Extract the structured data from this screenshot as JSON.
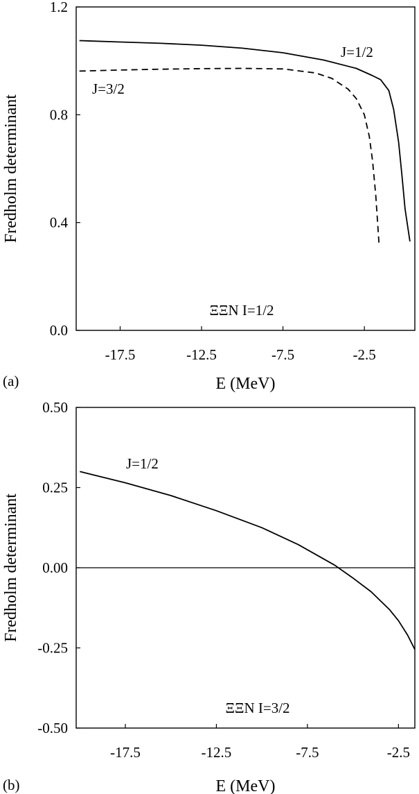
{
  "chart_data": [
    {
      "type": "line",
      "panel_label": "(a)",
      "xlabel": "E (MeV)",
      "ylabel": "Fredholm determinant",
      "xlim": [
        -20.2,
        0.6
      ],
      "ylim": [
        0.0,
        1.2
      ],
      "x_ticks": [
        -17.5,
        -12.5,
        -7.5,
        -2.5
      ],
      "x_tick_labels": [
        "-17.5",
        "-12.5",
        "-7.5",
        "-2.5"
      ],
      "y_ticks": [
        0.0,
        0.4,
        0.8,
        1.2
      ],
      "y_tick_labels": [
        "0.0",
        "0.4",
        "0.8",
        "1.2"
      ],
      "grid": false,
      "annotation": "ΞΞN  I=1/2",
      "series": [
        {
          "name": "J=1/2",
          "style": "solid",
          "x": [
            -20.0,
            -17.5,
            -15.0,
            -12.5,
            -10.0,
            -7.5,
            -5.0,
            -3.0,
            -2.0,
            -1.5,
            -1.0,
            -0.7,
            -0.4,
            -0.2,
            0.0,
            0.3
          ],
          "y": [
            1.075,
            1.07,
            1.065,
            1.058,
            1.047,
            1.03,
            1.003,
            0.972,
            0.945,
            0.93,
            0.89,
            0.82,
            0.7,
            0.58,
            0.45,
            0.33
          ]
        },
        {
          "name": "J=3/2",
          "style": "dashed",
          "x": [
            -20.0,
            -17.5,
            -15.0,
            -12.5,
            -10.0,
            -7.5,
            -5.5,
            -4.5,
            -3.5,
            -3.0,
            -2.5,
            -2.2,
            -2.0,
            -1.8,
            -1.6
          ],
          "y": [
            0.962,
            0.966,
            0.969,
            0.971,
            0.972,
            0.97,
            0.955,
            0.935,
            0.895,
            0.86,
            0.8,
            0.72,
            0.63,
            0.5,
            0.32
          ]
        }
      ]
    },
    {
      "type": "line",
      "panel_label": "(b)",
      "xlabel": "E (MeV)",
      "ylabel": "Fredholm determinant",
      "xlim": [
        -20.2,
        -1.6
      ],
      "ylim": [
        -0.5,
        0.5
      ],
      "x_ticks": [
        -17.5,
        -12.5,
        -7.5,
        -2.5
      ],
      "x_tick_labels": [
        "-17.5",
        "-12.5",
        "-7.5",
        "-2.5"
      ],
      "y_ticks": [
        -0.5,
        -0.25,
        0.0,
        0.25,
        0.5
      ],
      "y_tick_labels": [
        "-0.50",
        "-0.25",
        "0.00",
        "0.25",
        "0.50"
      ],
      "zero_line": true,
      "grid": false,
      "annotation": "ΞΞN  I=3/2",
      "series": [
        {
          "name": "J=1/2",
          "style": "solid",
          "x": [
            -20.0,
            -17.5,
            -15.0,
            -12.5,
            -10.0,
            -8.0,
            -6.0,
            -5.0,
            -4.0,
            -3.0,
            -2.5,
            -2.0,
            -1.6
          ],
          "y": [
            0.3,
            0.265,
            0.225,
            0.178,
            0.125,
            0.072,
            0.008,
            -0.032,
            -0.075,
            -0.13,
            -0.165,
            -0.21,
            -0.255
          ]
        }
      ]
    }
  ]
}
